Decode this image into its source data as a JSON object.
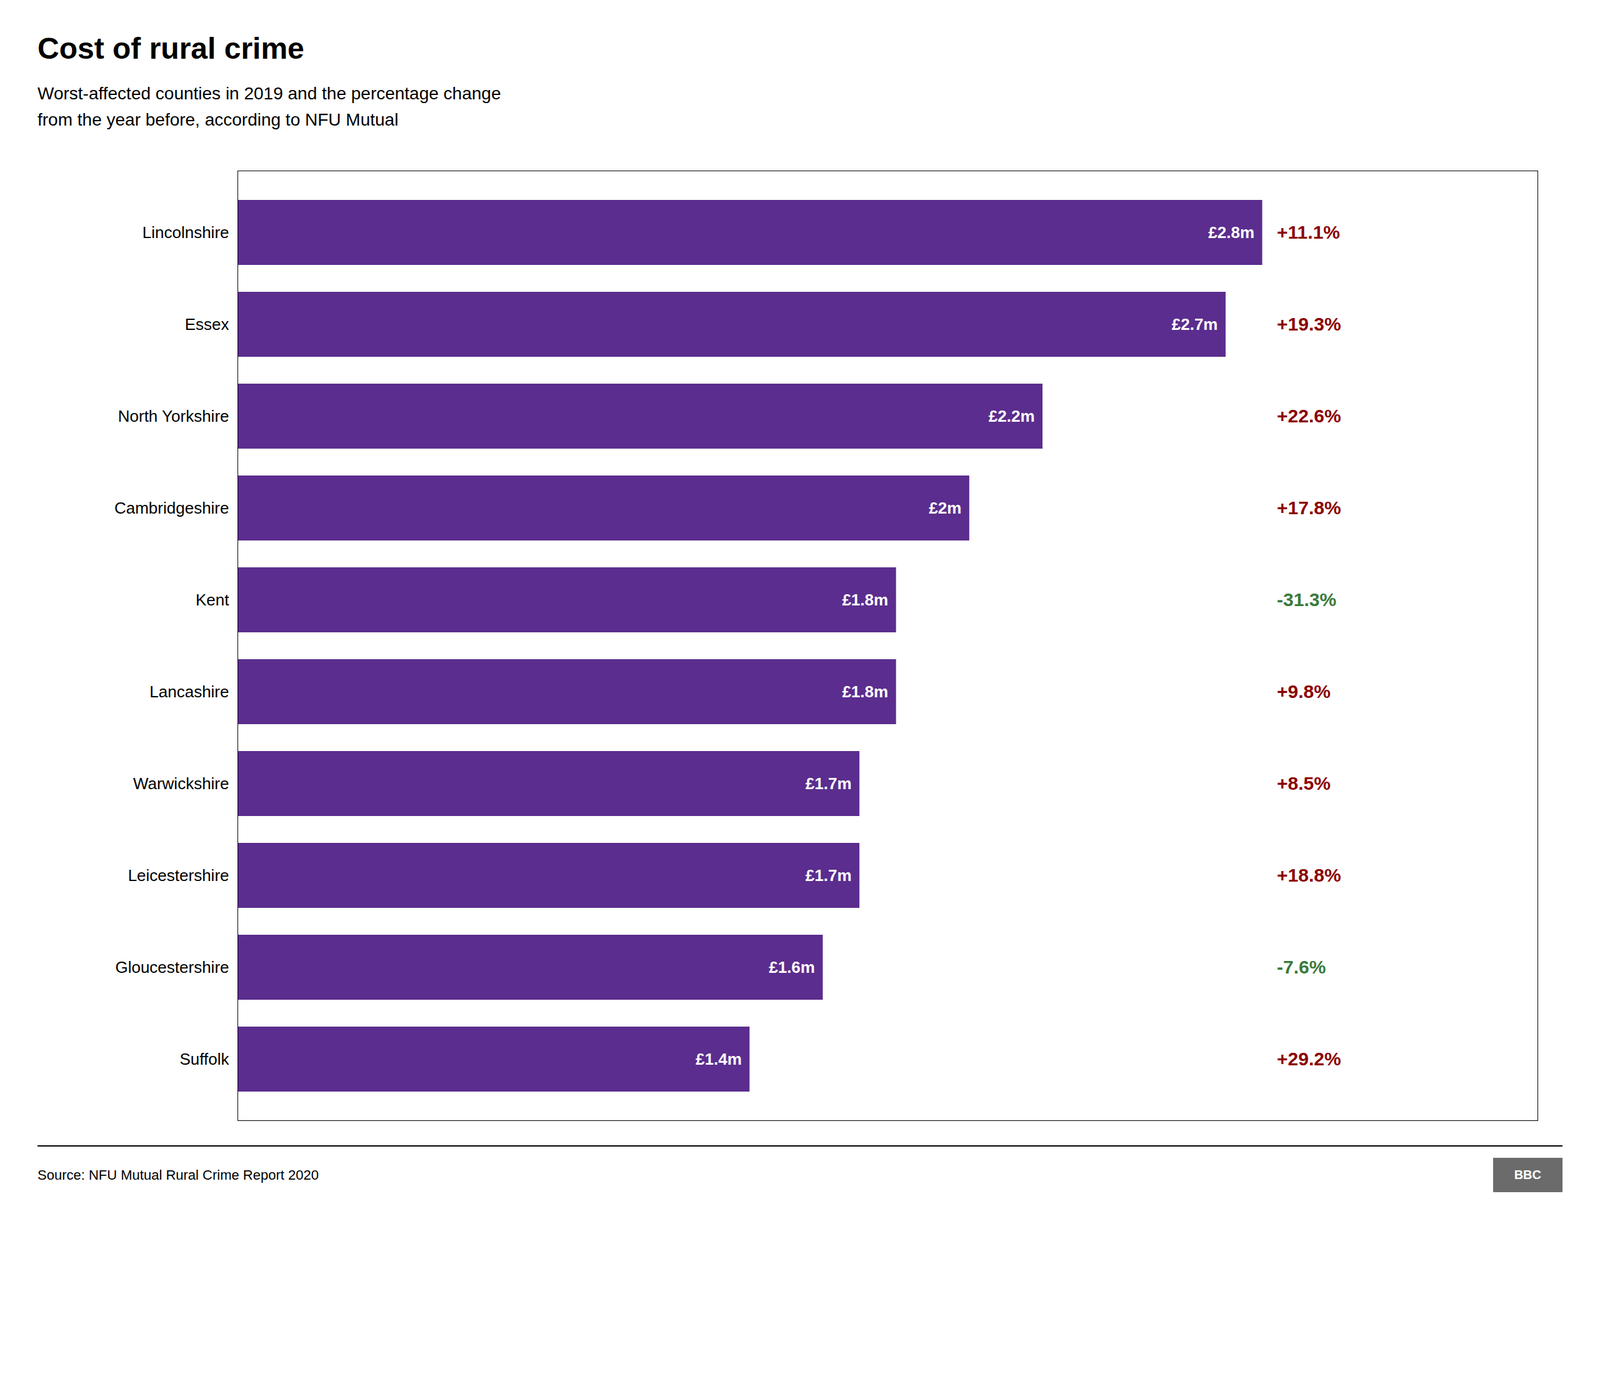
{
  "chart_data": {
    "type": "bar",
    "orientation": "horizontal",
    "title": "Cost of rural crime",
    "subtitle": "Worst-affected counties in 2019 and the percentage change\nfrom the year before, according to NFU Mutual",
    "source": "Source: NFU Mutual Rural Crime Report 2020",
    "annotations": [
      "BBC"
    ],
    "categories": [
      "Lincolnshire",
      "Essex",
      "North Yorkshire",
      "Cambridgeshire",
      "Kent",
      "Lancashire",
      "Warwickshire",
      "Leicestershire",
      "Gloucestershire",
      "Suffolk"
    ],
    "values": [
      2.8,
      2.7,
      2.2,
      2.0,
      1.8,
      1.8,
      1.7,
      1.7,
      1.6,
      1.4
    ],
    "value_labels": [
      "£2.8m",
      "£2.7m",
      "£2.2m",
      "£2m",
      "£1.8m",
      "£1.8m",
      "£1.7m",
      "£1.7m",
      "£1.6m",
      "£1.4m"
    ],
    "data_labels": true,
    "pct_changes": [
      11.1,
      19.3,
      22.6,
      17.8,
      -31.3,
      9.8,
      8.5,
      18.8,
      -7.6,
      29.2
    ],
    "pct_change_labels": [
      "+11.1%",
      "+19.3%",
      "+22.6%",
      "+17.8%",
      "-31.3%",
      "+9.8%",
      "+8.5%",
      "+18.8%",
      "-7.6%",
      "+29.2%"
    ],
    "pct_change_colors": [
      "#8B0000",
      "#8B0000",
      "#8B0000",
      "#8B0000",
      "#3a7a3a",
      "#8B0000",
      "#8B0000",
      "#8B0000",
      "#3a7a3a",
      "#8B0000"
    ],
    "color": "#5b2d8e",
    "xlim": [
      0,
      3.55
    ],
    "tick_labels": "y",
    "grid": false
  }
}
